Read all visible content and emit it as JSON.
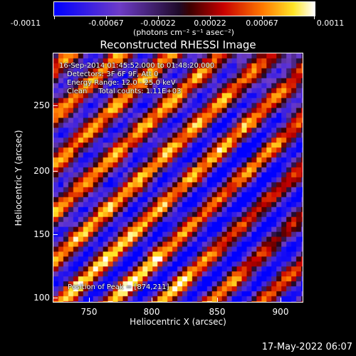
{
  "colorbar": {
    "tick_labels": [
      "-0.0011",
      "-0.00067",
      "-0.00022",
      "0.00022",
      "0.00067",
      "0.0011"
    ],
    "units": "(photons cm⁻² s⁻¹ asec⁻²)"
  },
  "title": "Reconstructed RHESSI Image",
  "info": {
    "time": "16-Sep-2014 01:45:52.000 to 01:48:20.000",
    "detectors": "Detectors: 3F 6F 9F, Att 0",
    "energy": "Energy Range: 12.0 - 25.0 keV",
    "clean": "Clean     Total counts: 1.11E+03",
    "peak": "Position of Peak = [874,211]"
  },
  "axes": {
    "xlabel": "Heliocentric X (arcsec)",
    "ylabel": "Heliocentric Y (arcsec)",
    "x_ticks": [
      "750",
      "800",
      "850",
      "900"
    ],
    "y_ticks": [
      "100",
      "150",
      "200",
      "250"
    ]
  },
  "datestamp": "17-May-2022 06:07"
}
